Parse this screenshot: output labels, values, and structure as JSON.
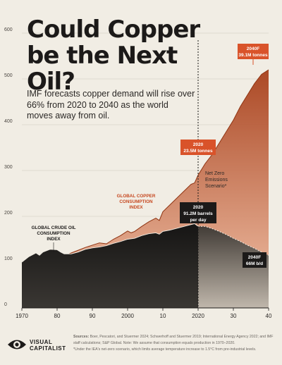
{
  "title": "Could Copper be the Next Oil?",
  "subtitle": "IMF forecasts copper demand will rise over 66% from 2020 to 2040 as the world moves away from oil.",
  "annotations": {
    "copper_label": [
      "GLOBAL COPPER",
      "CONSUMPTION",
      "INDEX"
    ],
    "oil_label": [
      "GLOBAL CRUDE OIL",
      "CONSUMPTION",
      "INDEX"
    ],
    "copper_2040_year": "2040F",
    "copper_2040_value": "39.1M tonnes",
    "copper_2020_year": "2020",
    "copper_2020_value": "23.5M tonnes",
    "oil_2020_year": "2020",
    "oil_2020_value": [
      "91.2M barrels",
      "per day"
    ],
    "oil_2040_year": "2040F",
    "oil_2040_value": "66M b/d",
    "scenario_note": [
      "Net Zero",
      "Emissions",
      "Scenario*"
    ]
  },
  "logo": {
    "name": [
      "VISUAL",
      "CAPITALIST"
    ],
    "icon": "visual-capitalist-logo-icon"
  },
  "sources": {
    "label": "Sources:",
    "text": "Boer, Pescatori, and Stuermer 2024; Schwerhoff and Stuermer 2019; International Energy Agency 2022; and IMF staff calculations; S&P Global. Note: We assume that consumption equals production in 1970–2020.",
    "note": "*Under the IEA's net-zero scenario, which limits average temperature increase to 1.5°C from pre-industrial levels."
  },
  "colors": {
    "background": "#f1ede4",
    "copper_dark": "#a8401b",
    "copper_light": "#f2c2a8",
    "oil_dark": "#161514",
    "label_copper": "#c6471f",
    "forecast_divider": "#1c1a19"
  },
  "chart_data": {
    "type": "area",
    "title": "Could Copper be the Next Oil?",
    "xlabel": "",
    "ylabel": "",
    "xlim": [
      1970,
      2040
    ],
    "ylim": [
      0,
      600
    ],
    "x_ticks": [
      1970,
      1980,
      1990,
      2000,
      2010,
      2020,
      2030,
      2040
    ],
    "x_tick_labels": [
      "1970",
      "80",
      "90",
      "2000",
      "10",
      "2020",
      "30",
      "40"
    ],
    "y_ticks": [
      0,
      100,
      200,
      300,
      400,
      500,
      600
    ],
    "y_tick_labels": [
      "0",
      "100",
      "200",
      "300",
      "400",
      "500",
      "600"
    ],
    "grid": true,
    "forecast_start": 2020,
    "series": [
      {
        "name": "GLOBAL COPPER CONSUMPTION INDEX",
        "x": [
          1970,
          1972,
          1974,
          1975,
          1976,
          1978,
          1980,
          1981,
          1982,
          1984,
          1986,
          1988,
          1990,
          1992,
          1994,
          1996,
          1998,
          2000,
          2001,
          2002,
          2004,
          2006,
          2008,
          2009,
          2010,
          2012,
          2014,
          2016,
          2018,
          2019,
          2020,
          2022,
          2024,
          2026,
          2028,
          2030,
          2032,
          2034,
          2036,
          2038,
          2040
        ],
        "values": [
          100,
          105,
          112,
          102,
          110,
          116,
          120,
          116,
          113,
          120,
          126,
          132,
          137,
          142,
          140,
          150,
          158,
          168,
          164,
          167,
          178,
          188,
          196,
          191,
          210,
          225,
          240,
          255,
          270,
          273,
          290,
          315,
          335,
          360,
          385,
          410,
          440,
          465,
          490,
          510,
          520
        ]
      },
      {
        "name": "GLOBAL CRUDE OIL CONSUMPTION INDEX",
        "x": [
          1970,
          1972,
          1974,
          1975,
          1976,
          1978,
          1980,
          1981,
          1982,
          1984,
          1986,
          1988,
          1990,
          1992,
          1994,
          1996,
          1998,
          2000,
          2002,
          2004,
          2006,
          2008,
          2009,
          2010,
          2012,
          2014,
          2016,
          2018,
          2019,
          2020,
          2022,
          2024,
          2026,
          2028,
          2030,
          2032,
          2034,
          2036,
          2038,
          2040
        ],
        "values": [
          100,
          112,
          120,
          115,
          122,
          128,
          127,
          122,
          118,
          118,
          122,
          128,
          131,
          133,
          136,
          141,
          145,
          150,
          152,
          158,
          162,
          164,
          161,
          167,
          170,
          174,
          178,
          182,
          184,
          178,
          178,
          173,
          167,
          160,
          152,
          145,
          137,
          130,
          122,
          115
        ]
      }
    ],
    "data_labels": [
      {
        "series": "GLOBAL COPPER CONSUMPTION INDEX",
        "x": 2040,
        "text": "2040F 39.1M tonnes"
      },
      {
        "series": "GLOBAL COPPER CONSUMPTION INDEX",
        "x": 2020,
        "text": "2020 23.5M tonnes"
      },
      {
        "series": "GLOBAL CRUDE OIL CONSUMPTION INDEX",
        "x": 2020,
        "text": "2020 91.2M barrels per day"
      },
      {
        "series": "GLOBAL CRUDE OIL CONSUMPTION INDEX",
        "x": 2040,
        "text": "2040F 66M b/d"
      }
    ]
  }
}
